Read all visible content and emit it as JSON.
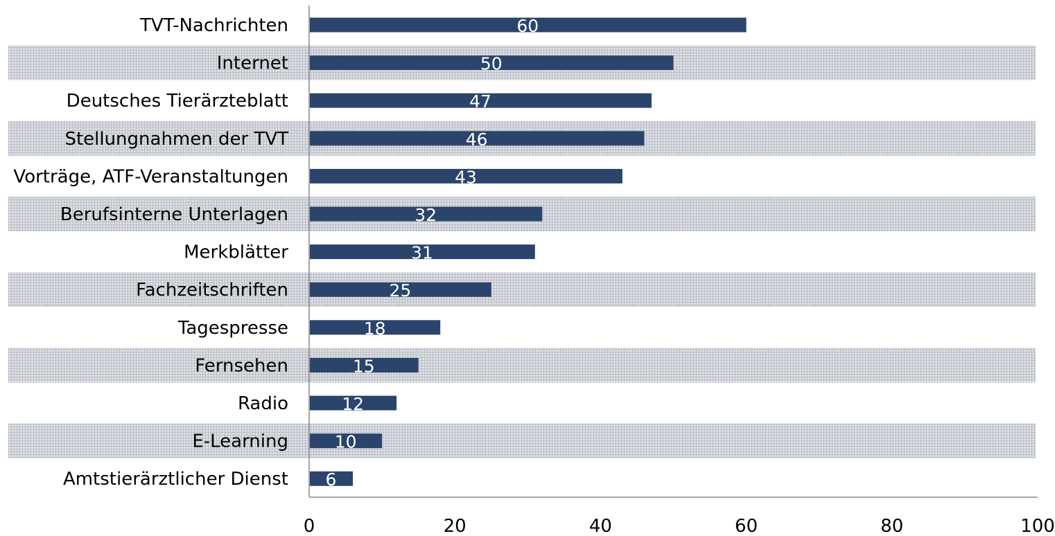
{
  "chart_data": {
    "type": "bar",
    "orientation": "horizontal",
    "title": "",
    "xlabel": "",
    "ylabel": "",
    "categories": [
      "TVT-Nachrichten",
      "Internet",
      "Deutsches Tierärzteblatt",
      "Stellungnahmen der TVT",
      "Vorträge, ATF-Veranstaltungen",
      "Berufsinterne Unterlagen",
      "Merkblätter",
      "Fachzeitschriften",
      "Tagespresse",
      "Fernsehen",
      "Radio",
      "E-Learning",
      "Amtstierärztlicher Dienst"
    ],
    "values": [
      60,
      50,
      47,
      46,
      43,
      32,
      31,
      25,
      18,
      15,
      12,
      10,
      6
    ],
    "value_labels": [
      "60",
      "50",
      "47",
      "46",
      "43",
      "32",
      "31",
      "25",
      "18",
      "15",
      "12",
      "10",
      "6"
    ],
    "xlim": [
      0,
      100
    ],
    "x_ticks": [
      "0",
      "20",
      "40",
      "60",
      "80",
      "100"
    ],
    "grid": false,
    "legend": "none",
    "colors": {
      "bar": "#2b446b",
      "bar_label": "#ffffff",
      "band_fill": "#dde0e4",
      "band_hatch": "#b9bec6",
      "axis": "#8a8a8a",
      "text": "#000000"
    }
  }
}
